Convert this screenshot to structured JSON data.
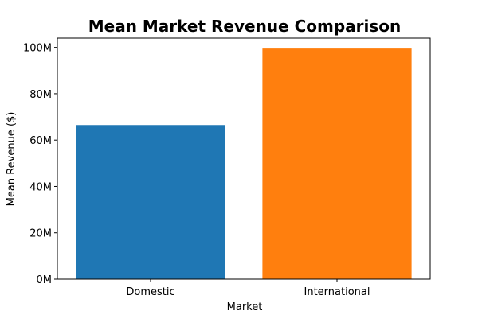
{
  "chart_data": {
    "type": "bar",
    "title": "Mean Market Revenue Comparison",
    "xlabel": "Market",
    "ylabel": "Mean Revenue ($)",
    "categories": [
      "Domestic",
      "International"
    ],
    "values": [
      66500000,
      99500000
    ],
    "colors": [
      "#1f77b4",
      "#ff7f0e"
    ],
    "ylim": [
      0,
      104000000
    ],
    "yticks": [
      0,
      20000000,
      40000000,
      60000000,
      80000000,
      100000000
    ],
    "ytick_labels": [
      "0M",
      "20M",
      "40M",
      "60M",
      "80M",
      "100M"
    ],
    "grid": false,
    "legend": "none"
  }
}
